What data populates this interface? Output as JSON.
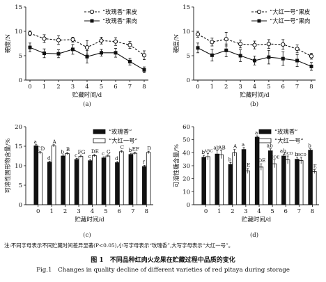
{
  "chart_data": [
    {
      "panel": "(a)",
      "type": "line",
      "ylabel": "硬度/N",
      "xlabel": "贮藏时间/d",
      "x": [
        0,
        1,
        2,
        3,
        4,
        5,
        6,
        7,
        8
      ],
      "xlim": [
        0,
        8
      ],
      "ylim": [
        0,
        15
      ],
      "yticks": [
        0,
        5,
        10,
        15
      ],
      "legend": "top-right",
      "series": [
        {
          "name": "“玫瑰香”果皮",
          "marker": "open-circle",
          "line": "dashed",
          "values": [
            9.6,
            8.5,
            8.2,
            8.3,
            6.7,
            8.1,
            7.9,
            7.2,
            5.1
          ],
          "errors": [
            0.5,
            0.8,
            0.9,
            0.5,
            1.4,
            0.7,
            0.8,
            0.7,
            0.9
          ]
        },
        {
          "name": "“玫瑰香”果肉",
          "marker": "filled-square",
          "line": "solid",
          "values": [
            6.7,
            5.5,
            5.4,
            6.3,
            4.8,
            5.6,
            5.6,
            3.8,
            2.1
          ],
          "errors": [
            0.9,
            0.9,
            0.8,
            1.0,
            1.3,
            0.7,
            0.9,
            0.7,
            0.6
          ]
        }
      ]
    },
    {
      "panel": "(b)",
      "type": "line",
      "ylabel": "硬度/N",
      "xlabel": "贮藏时间/d",
      "x": [
        0,
        1,
        2,
        3,
        4,
        5,
        6,
        7,
        8
      ],
      "xlim": [
        0,
        8
      ],
      "ylim": [
        0,
        15
      ],
      "yticks": [
        0,
        5,
        10,
        15
      ],
      "legend": "top-right",
      "series": [
        {
          "name": "“大红一号”果皮",
          "marker": "open-circle",
          "line": "dashed",
          "values": [
            9.4,
            7.8,
            8.4,
            7.4,
            7.2,
            7.4,
            7.3,
            6.4,
            4.9
          ],
          "errors": [
            0.6,
            0.8,
            1.4,
            0.8,
            0.8,
            0.9,
            1.0,
            0.8,
            0.6
          ]
        },
        {
          "name": "“大红一号”果肉",
          "marker": "filled-square",
          "line": "solid",
          "values": [
            6.6,
            5.1,
            6.1,
            5.0,
            4.0,
            4.7,
            4.4,
            4.0,
            2.8
          ],
          "errors": [
            1.0,
            1.2,
            1.3,
            1.2,
            0.9,
            1.4,
            1.4,
            1.2,
            0.8
          ]
        }
      ]
    },
    {
      "panel": "(c)",
      "type": "bar",
      "ylabel": "可溶性固形物含量/%",
      "xlabel": "贮藏时间/d",
      "categories": [
        "0",
        "1",
        "2",
        "3",
        "4",
        "5",
        "6",
        "7",
        "8"
      ],
      "ylim": [
        0,
        20
      ],
      "yticks": [
        0,
        5,
        10,
        15,
        20
      ],
      "legend": "top-right",
      "series": [
        {
          "name": "“玫瑰香”",
          "fill": "#111111",
          "values": [
            15.1,
            10.9,
            12.5,
            11.6,
            11.3,
            12.0,
            10.8,
            12.9,
            9.8
          ],
          "errors": [
            0.3,
            0.3,
            0.3,
            0.3,
            0.3,
            0.3,
            0.3,
            0.3,
            0.3
          ],
          "letters": [
            "a",
            "d",
            "b",
            "c",
            "c",
            "c",
            "d",
            "b",
            "f"
          ]
        },
        {
          "name": "“大红一号”",
          "fill": "#ffffff",
          "values": [
            13.3,
            15.1,
            13.1,
            12.4,
            12.6,
            12.5,
            13.6,
            13.2,
            13.4
          ],
          "errors": [
            0.3,
            0.3,
            0.3,
            0.3,
            0.3,
            0.3,
            0.3,
            0.3,
            0.3
          ],
          "letters": [
            "CD",
            "A",
            "B",
            "FG",
            "DE",
            "G",
            "C",
            "EF",
            "D"
          ]
        }
      ]
    },
    {
      "panel": "(d)",
      "type": "bar",
      "ylabel": "可溶性糖含量/%",
      "xlabel": "贮藏时间/d",
      "categories": [
        "0",
        "1",
        "2",
        "3",
        "4",
        "5",
        "6",
        "7",
        "8"
      ],
      "ylim": [
        0,
        60
      ],
      "yticks": [
        0,
        10,
        20,
        30,
        40,
        50,
        60
      ],
      "legend": "top-right",
      "series": [
        {
          "name": "“玫瑰香”",
          "fill": "#111111",
          "values": [
            36.5,
            39.0,
            31.0,
            42.5,
            52.0,
            41.5,
            37.5,
            35.0,
            42.0
          ],
          "errors": [
            1.5,
            2.5,
            1.5,
            1.5,
            1.0,
            1.5,
            1.5,
            1.5,
            1.0
          ],
          "letters": [
            "b",
            "ab",
            "b",
            "a",
            "a",
            "ab",
            "ab",
            "b",
            "b"
          ]
        },
        {
          "name": "“大红一号”",
          "fill": "#ffffff",
          "values": [
            37.0,
            38.5,
            40.0,
            26.0,
            29.0,
            31.5,
            34.5,
            34.0,
            25.5
          ],
          "errors": [
            2.5,
            3.0,
            2.5,
            2.0,
            2.5,
            3.0,
            3.0,
            2.5,
            1.5
          ],
          "letters": [
            "ABC",
            "AB",
            "A",
            "E",
            "DE",
            "CDE",
            "BCD",
            "BCD",
            "E"
          ]
        }
      ]
    }
  ],
  "footnote": "注:不同字母表示不同贮藏时间差异显著(P<0.05),小写字母表示“玫瑰香”,大写字母表示“大红一号”。",
  "caption_zh": "图 1　不同品种红肉火龙果在贮藏过程中品质的变化",
  "caption_en": "Fig.1　Changes in quality decline of different varieties of red pitaya during storage"
}
